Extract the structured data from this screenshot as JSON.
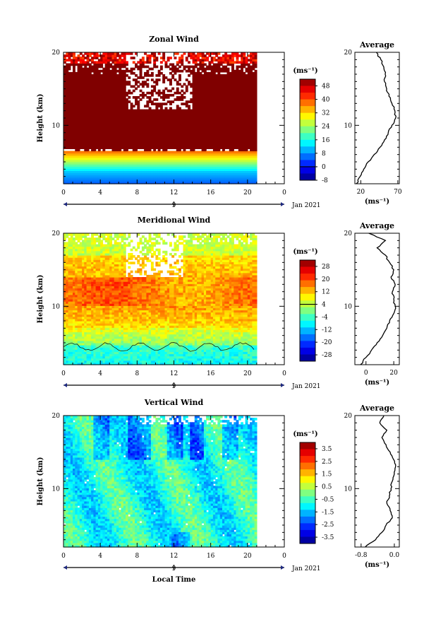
{
  "chart_data": [
    {
      "type": "heatmap",
      "title": "Zonal Wind",
      "ylabel": "Height (km)",
      "xlabel": "",
      "x_ticks": [
        "0",
        "4",
        "8",
        "12",
        "16",
        "20",
        "0"
      ],
      "y_ticks": [
        "20",
        "10"
      ],
      "xlim": [
        0,
        24
      ],
      "ylim": [
        2,
        20
      ],
      "date_marker": "9",
      "date_label": "Jan 2021",
      "colorbar": {
        "unit": "(ms⁻¹)",
        "ticks": [
          "48",
          "40",
          "32",
          "24",
          "16",
          "8",
          "0",
          "-8"
        ],
        "range": [
          -8,
          52
        ]
      },
      "profile": {
        "title": "Average",
        "x_ticks": [
          "20",
          "70"
        ],
        "xlabel": "(ms⁻¹)",
        "y_ticks": [
          "20",
          "10"
        ],
        "xlim": [
          12,
          72
        ],
        "points": [
          [
            14,
            2
          ],
          [
            19,
            3
          ],
          [
            24,
            4
          ],
          [
            30,
            5
          ],
          [
            38,
            6
          ],
          [
            46,
            7
          ],
          [
            52,
            8
          ],
          [
            57,
            9
          ],
          [
            62,
            10
          ],
          [
            67,
            11
          ],
          [
            66,
            12
          ],
          [
            62,
            13
          ],
          [
            58,
            14
          ],
          [
            55,
            15
          ],
          [
            52,
            16
          ],
          [
            53,
            17
          ],
          [
            51,
            18
          ],
          [
            47,
            19
          ],
          [
            41,
            20
          ]
        ]
      }
    },
    {
      "type": "heatmap",
      "title": "Meridional Wind",
      "ylabel": "Height (km)",
      "xlabel": "",
      "x_ticks": [
        "0",
        "4",
        "8",
        "12",
        "16",
        "20",
        "0"
      ],
      "y_ticks": [
        "20",
        "10"
      ],
      "xlim": [
        0,
        24
      ],
      "ylim": [
        2,
        20
      ],
      "date_marker": "9",
      "date_label": "Jan 2021",
      "colorbar": {
        "unit": "(ms⁻¹)",
        "ticks": [
          "28",
          "20",
          "12",
          "4",
          "-4",
          "-12",
          "-20",
          "-28"
        ],
        "range": [
          -32,
          32
        ]
      },
      "profile": {
        "title": "Average",
        "x_ticks": [
          "0",
          "20"
        ],
        "xlabel": "(ms⁻¹)",
        "y_ticks": [
          "20",
          "10"
        ],
        "xlim": [
          -8,
          24
        ],
        "points": [
          [
            -4,
            2
          ],
          [
            0,
            3
          ],
          [
            4,
            4
          ],
          [
            8,
            5
          ],
          [
            12,
            6
          ],
          [
            15,
            7
          ],
          [
            17,
            8
          ],
          [
            20,
            9
          ],
          [
            21,
            10
          ],
          [
            20,
            11
          ],
          [
            19,
            12
          ],
          [
            21,
            13
          ],
          [
            18,
            14
          ],
          [
            20,
            15
          ],
          [
            17,
            16
          ],
          [
            14,
            17
          ],
          [
            8,
            18
          ],
          [
            14,
            19
          ],
          [
            2,
            20
          ]
        ]
      }
    },
    {
      "type": "heatmap",
      "title": "Vertical Wind",
      "ylabel": "Height (km)",
      "xlabel": "Local Time",
      "x_ticks": [
        "0",
        "4",
        "8",
        "12",
        "16",
        "20",
        "0"
      ],
      "y_ticks": [
        "20",
        "10"
      ],
      "xlim": [
        0,
        24
      ],
      "ylim": [
        2,
        20
      ],
      "date_marker": "9",
      "date_label": "Jan 2021",
      "colorbar": {
        "unit": "(ms⁻¹)",
        "ticks": [
          "3.5",
          "2.5",
          "1.5",
          "0.5",
          "-0.5",
          "-1.5",
          "-2.5",
          "-3.5"
        ],
        "range": [
          -4,
          4
        ]
      },
      "profile": {
        "title": "Average",
        "x_ticks": [
          "-0.8",
          "0.0"
        ],
        "xlabel": "(ms⁻¹)",
        "y_ticks": [
          "20",
          "10"
        ],
        "xlim": [
          -0.95,
          0.12
        ],
        "points": [
          [
            -0.7,
            2
          ],
          [
            -0.45,
            3
          ],
          [
            -0.3,
            4
          ],
          [
            -0.2,
            5
          ],
          [
            -0.05,
            6
          ],
          [
            -0.1,
            7
          ],
          [
            -0.18,
            8
          ],
          [
            -0.12,
            9
          ],
          [
            -0.08,
            10
          ],
          [
            -0.05,
            11
          ],
          [
            0.0,
            12
          ],
          [
            0.03,
            13
          ],
          [
            -0.02,
            14
          ],
          [
            -0.1,
            15
          ],
          [
            -0.2,
            16
          ],
          [
            -0.3,
            17
          ],
          [
            -0.18,
            18
          ],
          [
            -0.35,
            19
          ],
          [
            -0.25,
            20
          ]
        ]
      }
    }
  ]
}
